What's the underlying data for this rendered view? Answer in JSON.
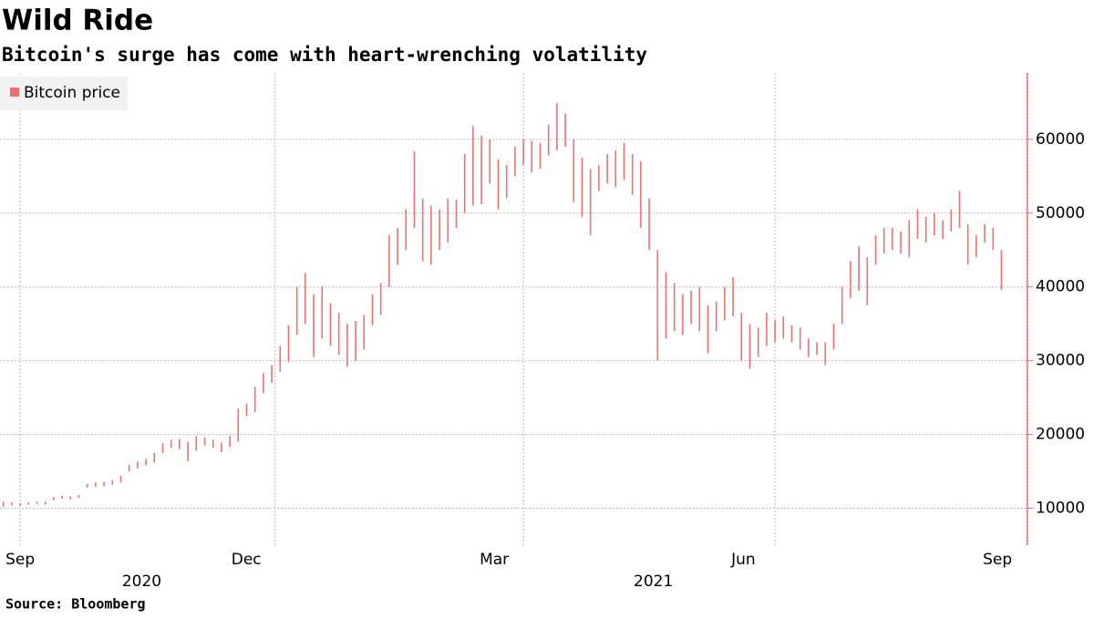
{
  "chart_data": {
    "type": "ohlc",
    "title": "Wild Ride",
    "subtitle": "Bitcoin's surge has come with heart-wrenching volatility",
    "source": "Source: Bloomberg",
    "series": [
      {
        "name": "Bitcoin price",
        "color": "#f07070",
        "low": [
          10200,
          10400,
          10300,
          10500,
          10600,
          10500,
          11100,
          11300,
          11200,
          11400,
          12800,
          12900,
          13000,
          13200,
          13500,
          15000,
          15400,
          15800,
          16200,
          17500,
          18200,
          18000,
          16400,
          17800,
          18500,
          18200,
          17600,
          18300,
          19000,
          22500,
          23000,
          25600,
          27000,
          28500,
          29800,
          33500,
          35000,
          30500,
          33000,
          32000,
          30800,
          29200,
          30000,
          31500,
          34800,
          36200,
          40000,
          43000,
          45000,
          48000,
          43500,
          43000,
          45000,
          46000,
          48000,
          50000,
          51000,
          51200,
          54000,
          50500,
          52000,
          55000,
          56500,
          55500,
          56000,
          57800,
          58500,
          59000,
          51500,
          49500,
          47000,
          53000,
          54000,
          53500,
          54500,
          52500,
          48000,
          45000,
          30000,
          33000,
          34000,
          33500,
          35000,
          34000,
          31000,
          34000,
          35500,
          36000,
          30000,
          28900,
          30500,
          32000,
          32500,
          33000,
          32500,
          31500,
          30500,
          30800,
          29400,
          31500,
          35000,
          38500,
          39500,
          37500,
          43000,
          44500,
          45000,
          44500,
          44000,
          46500,
          46000,
          47000,
          46500,
          47500,
          48000,
          43000,
          44000,
          46000,
          45000,
          39600
        ],
        "high": [
          10900,
          10800,
          10700,
          10800,
          10900,
          10900,
          11500,
          11700,
          11600,
          11800,
          13300,
          13500,
          13600,
          13800,
          14400,
          15900,
          16300,
          16700,
          17500,
          18800,
          19300,
          19400,
          19000,
          19800,
          19600,
          19300,
          18900,
          19800,
          23500,
          24200,
          26500,
          28300,
          29400,
          32000,
          34800,
          40000,
          41900,
          39000,
          40100,
          37800,
          36500,
          35000,
          35400,
          36200,
          39000,
          40500,
          47000,
          48000,
          50500,
          58400,
          52000,
          51000,
          50500,
          52000,
          51800,
          58000,
          61800,
          60500,
          60000,
          57300,
          56500,
          59000,
          60000,
          59800,
          59500,
          62000,
          64900,
          63500,
          60000,
          57500,
          56000,
          56500,
          58000,
          58500,
          59500,
          58000,
          57000,
          52000,
          45000,
          42000,
          40500,
          39000,
          39500,
          40000,
          37500,
          38000,
          40000,
          41300,
          36500,
          35000,
          34500,
          36500,
          35500,
          36000,
          34800,
          34500,
          33000,
          32500,
          32500,
          35000,
          40000,
          43500,
          45500,
          44000,
          47000,
          48000,
          48000,
          47500,
          49000,
          50500,
          49500,
          50000,
          49000,
          50500,
          53000,
          48500,
          47000,
          48500,
          48000,
          45000
        ]
      }
    ],
    "xlim": [
      -0.4,
      122.1
    ],
    "xticks": [
      {
        "value": 2,
        "label": "Sep"
      },
      {
        "value": 32.4,
        "label": "Dec"
      },
      {
        "value": 62,
        "label": "Mar"
      },
      {
        "value": 92,
        "label": "Jun"
      },
      {
        "value": 122,
        "label": "Sep"
      }
    ],
    "years": [
      {
        "value": 16.5,
        "label": "2020"
      },
      {
        "value": 77.5,
        "label": "2021"
      }
    ],
    "ylim": [
      5000,
      69000
    ],
    "yticks": [
      10000,
      20000,
      30000,
      40000,
      50000,
      60000
    ],
    "grid": true
  }
}
